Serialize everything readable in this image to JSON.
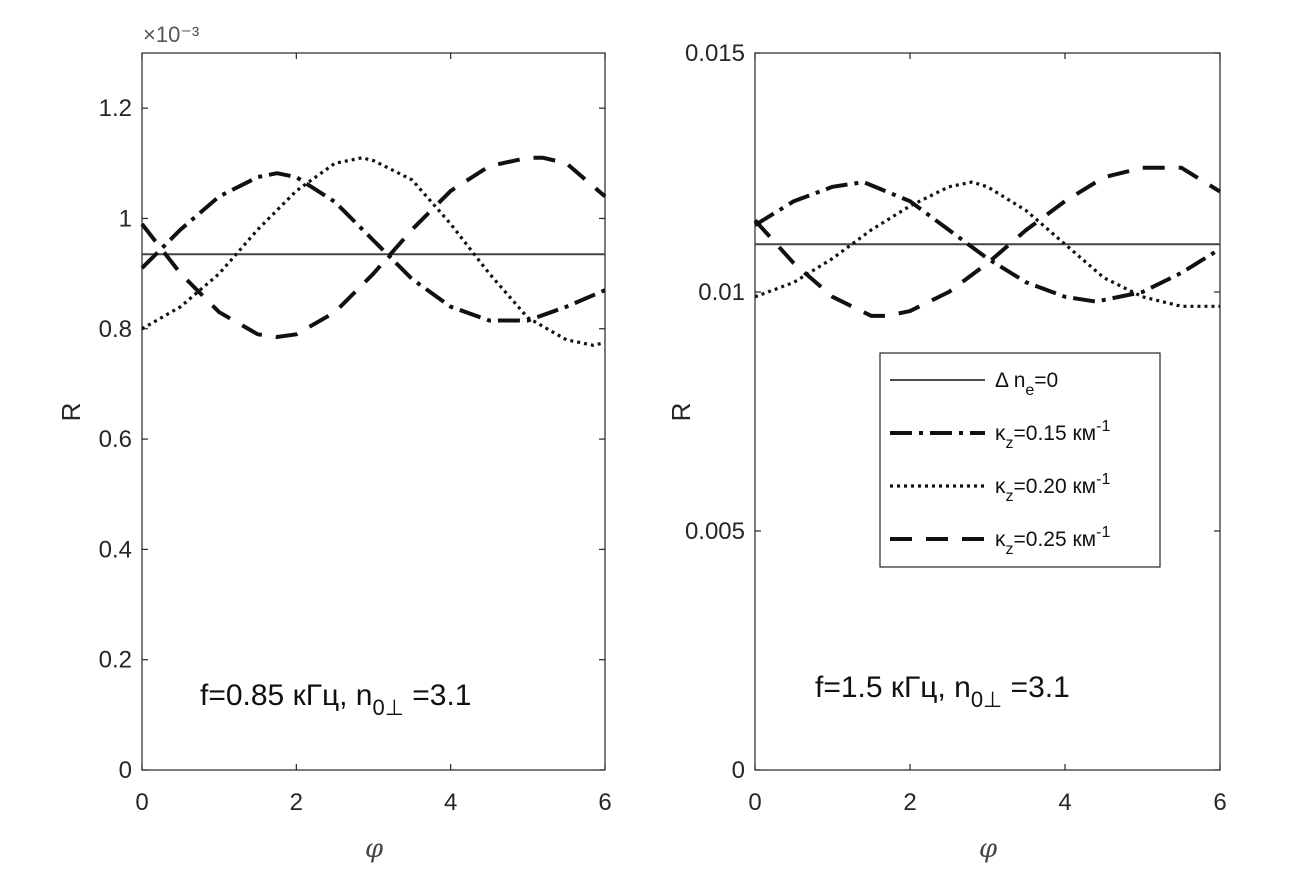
{
  "chart_data": [
    {
      "type": "line",
      "panel": "left",
      "xlabel": "φ",
      "ylabel": "R",
      "xlim": [
        0,
        6
      ],
      "ylim": [
        0,
        1.3
      ],
      "y_multiplier": "×10⁻³",
      "x_ticks": [
        "0",
        "2",
        "4",
        "6"
      ],
      "y_ticks": [
        "0",
        "0.2",
        "0.4",
        "0.6",
        "0.8",
        "1",
        "1.2"
      ],
      "annotation": {
        "prefix": "f=0.85 кГц, n",
        "sub": "0⊥",
        "suffix": " =3.1"
      },
      "series": [
        {
          "style": "solid",
          "x": [
            0,
            6
          ],
          "y": [
            0.935,
            0.935
          ]
        },
        {
          "style": "dashdot",
          "x": [
            0,
            0.5,
            1.0,
            1.5,
            1.75,
            2.0,
            2.5,
            3.0,
            3.5,
            4.0,
            4.5,
            5.0,
            5.5,
            6.0
          ],
          "y": [
            0.91,
            0.98,
            1.04,
            1.075,
            1.082,
            1.075,
            1.03,
            0.96,
            0.89,
            0.84,
            0.815,
            0.815,
            0.84,
            0.87
          ]
        },
        {
          "style": "dotted",
          "x": [
            0,
            0.5,
            1.0,
            1.5,
            2.0,
            2.5,
            2.85,
            3.0,
            3.5,
            4.0,
            4.5,
            5.0,
            5.5,
            5.85,
            6.0
          ],
          "y": [
            0.8,
            0.84,
            0.9,
            0.98,
            1.05,
            1.1,
            1.11,
            1.105,
            1.07,
            0.99,
            0.9,
            0.82,
            0.78,
            0.77,
            0.775
          ]
        },
        {
          "style": "dashed",
          "x": [
            0,
            0.5,
            1.0,
            1.5,
            1.75,
            2.0,
            2.5,
            3.0,
            3.5,
            4.0,
            4.5,
            5.0,
            5.2,
            5.5,
            6.0
          ],
          "y": [
            0.99,
            0.9,
            0.83,
            0.79,
            0.785,
            0.79,
            0.83,
            0.9,
            0.98,
            1.05,
            1.095,
            1.11,
            1.11,
            1.1,
            1.04
          ]
        }
      ]
    },
    {
      "type": "line",
      "panel": "right",
      "xlabel": "φ",
      "ylabel": "R",
      "xlim": [
        0,
        6
      ],
      "ylim": [
        0,
        0.015
      ],
      "x_ticks": [
        "0",
        "2",
        "4",
        "6"
      ],
      "y_ticks": [
        "0",
        "0.005",
        "0.01",
        "0.015"
      ],
      "annotation": {
        "prefix": "f=1.5 кГц, n",
        "sub": "0⊥",
        "suffix": " =3.1"
      },
      "legend": {
        "placement": "right",
        "entries": [
          {
            "style": "solid",
            "greek": "Δ",
            "base": " n",
            "sub": "e",
            "tail": "=0",
            "sup": ""
          },
          {
            "style": "dashdot",
            "greek": "κ",
            "base": "",
            "sub": "z",
            "tail": "=0.15 км",
            "sup": "-1"
          },
          {
            "style": "dotted",
            "greek": "κ",
            "base": "",
            "sub": "z",
            "tail": "=0.20 км",
            "sup": "-1"
          },
          {
            "style": "dashed",
            "greek": "κ",
            "base": "",
            "sub": "z",
            "tail": "=0.25 км",
            "sup": "-1"
          }
        ]
      },
      "series": [
        {
          "style": "solid",
          "x": [
            0,
            6
          ],
          "y": [
            0.011,
            0.011
          ]
        },
        {
          "style": "dashdot",
          "x": [
            0,
            0.5,
            1.0,
            1.4,
            2.0,
            2.5,
            3.0,
            3.5,
            4.0,
            4.4,
            5.0,
            5.5,
            6.0
          ],
          "y": [
            0.0114,
            0.0119,
            0.0122,
            0.0123,
            0.0119,
            0.0113,
            0.0107,
            0.0102,
            0.0099,
            0.0098,
            0.01,
            0.0104,
            0.0109
          ]
        },
        {
          "style": "dotted",
          "x": [
            0,
            0.5,
            1.0,
            1.5,
            2.0,
            2.5,
            2.8,
            3.0,
            3.5,
            4.0,
            4.5,
            5.0,
            5.5,
            6.0
          ],
          "y": [
            0.0099,
            0.0102,
            0.0107,
            0.0113,
            0.0118,
            0.0122,
            0.0123,
            0.0122,
            0.0117,
            0.011,
            0.0103,
            0.0099,
            0.0097,
            0.0097
          ]
        },
        {
          "style": "dashed",
          "x": [
            0,
            0.5,
            1.0,
            1.5,
            1.7,
            2.0,
            2.5,
            3.0,
            3.5,
            4.0,
            4.5,
            5.0,
            5.2,
            5.5,
            6.0
          ],
          "y": [
            0.0115,
            0.0106,
            0.0099,
            0.0095,
            0.0095,
            0.0096,
            0.01,
            0.0106,
            0.0113,
            0.0119,
            0.0124,
            0.0126,
            0.0126,
            0.0126,
            0.0121
          ]
        }
      ]
    }
  ],
  "colors": {
    "axis": "#262626",
    "series": "#111111",
    "grid": "none"
  }
}
